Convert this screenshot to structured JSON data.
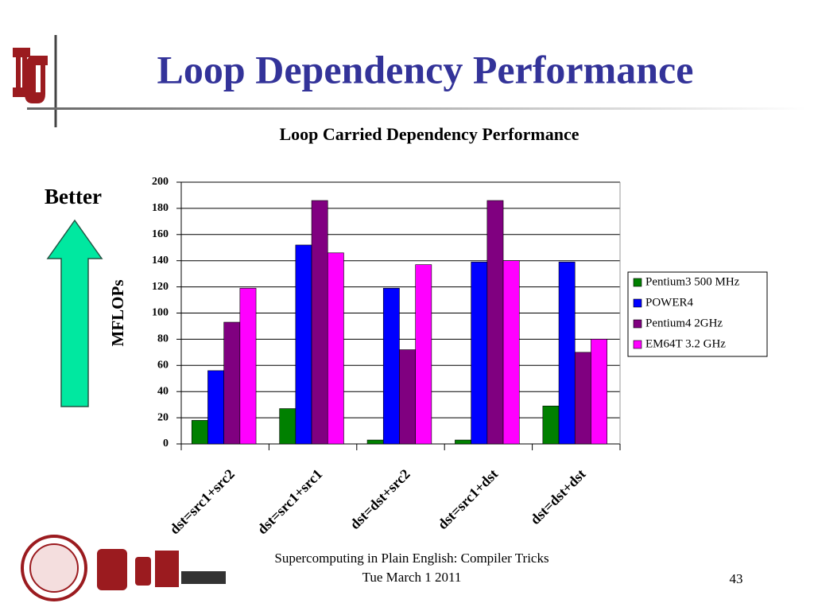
{
  "slide_title": "Loop Dependency Performance",
  "better_label": "Better",
  "footer": {
    "line1": "Supercomputing in Plain English: Compiler Tricks",
    "line2": "Tue March 1 2011",
    "page": "43"
  },
  "chart_data": {
    "type": "bar",
    "title": "Loop Carried Dependency Performance",
    "y_label": "MFLOPs",
    "categories": [
      "dst=src1+src2",
      "dst=src1+src1",
      "dst=dst+src2",
      "dst=src1+dst",
      "dst=dst+dst"
    ],
    "series": [
      {
        "name": "Pentium3 500 MHz",
        "color": "#008000",
        "values": [
          18,
          27,
          3,
          3,
          29
        ]
      },
      {
        "name": "POWER4",
        "color": "#0000ff",
        "values": [
          56,
          152,
          119,
          139,
          139
        ]
      },
      {
        "name": "Pentium4 2GHz",
        "color": "#800080",
        "values": [
          93,
          186,
          72,
          186,
          70
        ]
      },
      {
        "name": "EM64T 3.2 GHz",
        "color": "#ff00ff",
        "values": [
          119,
          146,
          137,
          140,
          80
        ]
      }
    ],
    "ylim": [
      0,
      200
    ],
    "yticks": [
      0,
      20,
      40,
      60,
      80,
      100,
      120,
      140,
      160,
      180,
      200
    ],
    "grid": true,
    "legend": "right"
  }
}
